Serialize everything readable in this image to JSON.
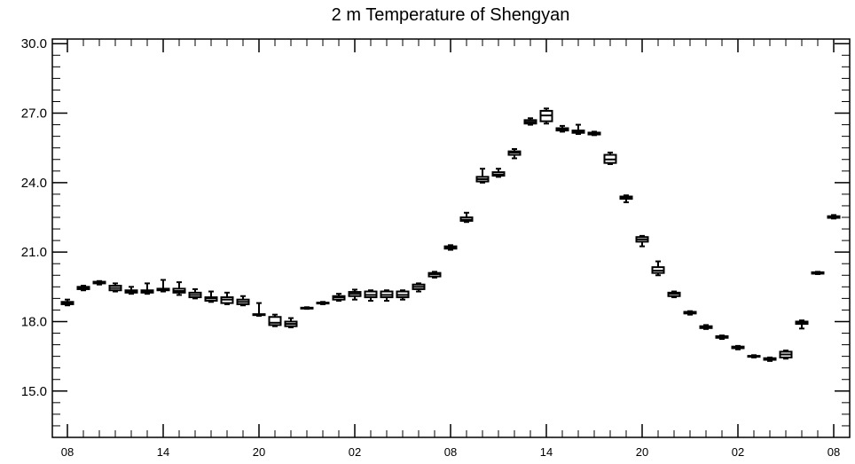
{
  "chart_data": {
    "type": "box",
    "title": "2 m Temperature of Shengyan",
    "xlabel": "",
    "ylabel": "",
    "ylim": [
      13.0,
      30.2
    ],
    "y_ticks": [
      "15.0",
      "18.0",
      "21.0",
      "24.0",
      "27.0",
      "30.0"
    ],
    "x_ticks": [
      "08",
      "14",
      "20",
      "02",
      "08",
      "14",
      "20",
      "02",
      "08"
    ],
    "x_tick_hours": [
      0,
      6,
      12,
      18,
      24,
      30,
      36,
      42,
      48
    ],
    "grid": false,
    "boxes": [
      {
        "hour": 0,
        "min": 18.7,
        "q1": 18.75,
        "median": 18.8,
        "q3": 18.85,
        "max": 18.95
      },
      {
        "hour": 1,
        "min": 19.35,
        "q1": 19.4,
        "median": 19.45,
        "q3": 19.5,
        "max": 19.55
      },
      {
        "hour": 2,
        "min": 19.6,
        "q1": 19.65,
        "median": 19.7,
        "q3": 19.72,
        "max": 19.75
      },
      {
        "hour": 3,
        "min": 19.3,
        "q1": 19.35,
        "median": 19.45,
        "q3": 19.55,
        "max": 19.65
      },
      {
        "hour": 4,
        "min": 19.2,
        "q1": 19.25,
        "median": 19.3,
        "q3": 19.35,
        "max": 19.5
      },
      {
        "hour": 5,
        "min": 19.2,
        "q1": 19.25,
        "median": 19.3,
        "q3": 19.35,
        "max": 19.65
      },
      {
        "hour": 6,
        "min": 19.3,
        "q1": 19.35,
        "median": 19.38,
        "q3": 19.42,
        "max": 19.8
      },
      {
        "hour": 7,
        "min": 19.15,
        "q1": 19.25,
        "median": 19.32,
        "q3": 19.42,
        "max": 19.7
      },
      {
        "hour": 8,
        "min": 19.0,
        "q1": 19.05,
        "median": 19.15,
        "q3": 19.25,
        "max": 19.4
      },
      {
        "hour": 9,
        "min": 18.85,
        "q1": 18.9,
        "median": 19.0,
        "q3": 19.05,
        "max": 19.3
      },
      {
        "hour": 10,
        "min": 18.75,
        "q1": 18.8,
        "median": 18.95,
        "q3": 19.05,
        "max": 19.25
      },
      {
        "hour": 11,
        "min": 18.7,
        "q1": 18.75,
        "median": 18.85,
        "q3": 18.95,
        "max": 19.1
      },
      {
        "hour": 12,
        "min": 18.25,
        "q1": 18.28,
        "median": 18.3,
        "q3": 18.32,
        "max": 18.8
      },
      {
        "hour": 13,
        "min": 17.8,
        "q1": 17.85,
        "median": 17.95,
        "q3": 18.2,
        "max": 18.3
      },
      {
        "hour": 14,
        "min": 17.75,
        "q1": 17.8,
        "median": 17.9,
        "q3": 18.0,
        "max": 18.15
      },
      {
        "hour": 15,
        "min": 18.55,
        "q1": 18.57,
        "median": 18.58,
        "q3": 18.6,
        "max": 18.62
      },
      {
        "hour": 16,
        "min": 18.75,
        "q1": 18.78,
        "median": 18.8,
        "q3": 18.82,
        "max": 18.85
      },
      {
        "hour": 17,
        "min": 18.9,
        "q1": 18.95,
        "median": 19.05,
        "q3": 19.1,
        "max": 19.2
      },
      {
        "hour": 18,
        "min": 18.95,
        "q1": 19.1,
        "median": 19.2,
        "q3": 19.28,
        "max": 19.38
      },
      {
        "hour": 19,
        "min": 18.9,
        "q1": 19.05,
        "median": 19.15,
        "q3": 19.3,
        "max": 19.35
      },
      {
        "hour": 20,
        "min": 18.9,
        "q1": 19.05,
        "median": 19.15,
        "q3": 19.3,
        "max": 19.35
      },
      {
        "hour": 21,
        "min": 18.95,
        "q1": 19.05,
        "median": 19.15,
        "q3": 19.3,
        "max": 19.35
      },
      {
        "hour": 22,
        "min": 19.3,
        "q1": 19.4,
        "median": 19.5,
        "q3": 19.6,
        "max": 19.65
      },
      {
        "hour": 23,
        "min": 19.9,
        "q1": 19.95,
        "median": 20.05,
        "q3": 20.1,
        "max": 20.15
      },
      {
        "hour": 24,
        "min": 21.1,
        "q1": 21.15,
        "median": 21.2,
        "q3": 21.25,
        "max": 21.3
      },
      {
        "hour": 25,
        "min": 22.3,
        "q1": 22.35,
        "median": 22.4,
        "q3": 22.5,
        "max": 22.7
      },
      {
        "hour": 26,
        "min": 24.0,
        "q1": 24.05,
        "median": 24.15,
        "q3": 24.25,
        "max": 24.6
      },
      {
        "hour": 27,
        "min": 24.25,
        "q1": 24.3,
        "median": 24.35,
        "q3": 24.45,
        "max": 24.6
      },
      {
        "hour": 28,
        "min": 25.05,
        "q1": 25.2,
        "median": 25.3,
        "q3": 25.35,
        "max": 25.45
      },
      {
        "hour": 29,
        "min": 26.5,
        "q1": 26.55,
        "median": 26.62,
        "q3": 26.7,
        "max": 26.78
      },
      {
        "hour": 30,
        "min": 26.55,
        "q1": 26.65,
        "median": 26.9,
        "q3": 27.1,
        "max": 27.2
      },
      {
        "hour": 31,
        "min": 26.2,
        "q1": 26.25,
        "median": 26.3,
        "q3": 26.35,
        "max": 26.45
      },
      {
        "hour": 32,
        "min": 26.1,
        "q1": 26.15,
        "median": 26.2,
        "q3": 26.25,
        "max": 26.5
      },
      {
        "hour": 33,
        "min": 26.05,
        "q1": 26.08,
        "median": 26.12,
        "q3": 26.16,
        "max": 26.2
      },
      {
        "hour": 34,
        "min": 24.8,
        "q1": 24.85,
        "median": 25.0,
        "q3": 25.2,
        "max": 25.3
      },
      {
        "hour": 35,
        "min": 23.15,
        "q1": 23.3,
        "median": 23.35,
        "q3": 23.4,
        "max": 23.45
      },
      {
        "hour": 36,
        "min": 21.25,
        "q1": 21.45,
        "median": 21.55,
        "q3": 21.65,
        "max": 21.7
      },
      {
        "hour": 37,
        "min": 20.0,
        "q1": 20.1,
        "median": 20.2,
        "q3": 20.35,
        "max": 20.6
      },
      {
        "hour": 38,
        "min": 19.05,
        "q1": 19.1,
        "median": 19.2,
        "q3": 19.25,
        "max": 19.3
      },
      {
        "hour": 39,
        "min": 18.3,
        "q1": 18.35,
        "median": 18.38,
        "q3": 18.42,
        "max": 18.45
      },
      {
        "hour": 40,
        "min": 17.68,
        "q1": 17.72,
        "median": 17.75,
        "q3": 17.8,
        "max": 17.85
      },
      {
        "hour": 41,
        "min": 17.25,
        "q1": 17.3,
        "median": 17.33,
        "q3": 17.37,
        "max": 17.4
      },
      {
        "hour": 42,
        "min": 16.8,
        "q1": 16.85,
        "median": 16.88,
        "q3": 16.92,
        "max": 16.95
      },
      {
        "hour": 43,
        "min": 16.45,
        "q1": 16.48,
        "median": 16.5,
        "q3": 16.52,
        "max": 16.55
      },
      {
        "hour": 44,
        "min": 16.3,
        "q1": 16.35,
        "median": 16.38,
        "q3": 16.42,
        "max": 16.45
      },
      {
        "hour": 45,
        "min": 16.4,
        "q1": 16.45,
        "median": 16.58,
        "q3": 16.7,
        "max": 16.75
      },
      {
        "hour": 46,
        "min": 17.7,
        "q1": 17.9,
        "median": 17.95,
        "q3": 18.0,
        "max": 18.05
      },
      {
        "hour": 47,
        "min": 20.05,
        "q1": 20.07,
        "median": 20.1,
        "q3": 20.13,
        "max": 20.15
      },
      {
        "hour": 48,
        "min": 22.45,
        "q1": 22.48,
        "median": 22.5,
        "q3": 22.55,
        "max": 22.6
      }
    ]
  }
}
